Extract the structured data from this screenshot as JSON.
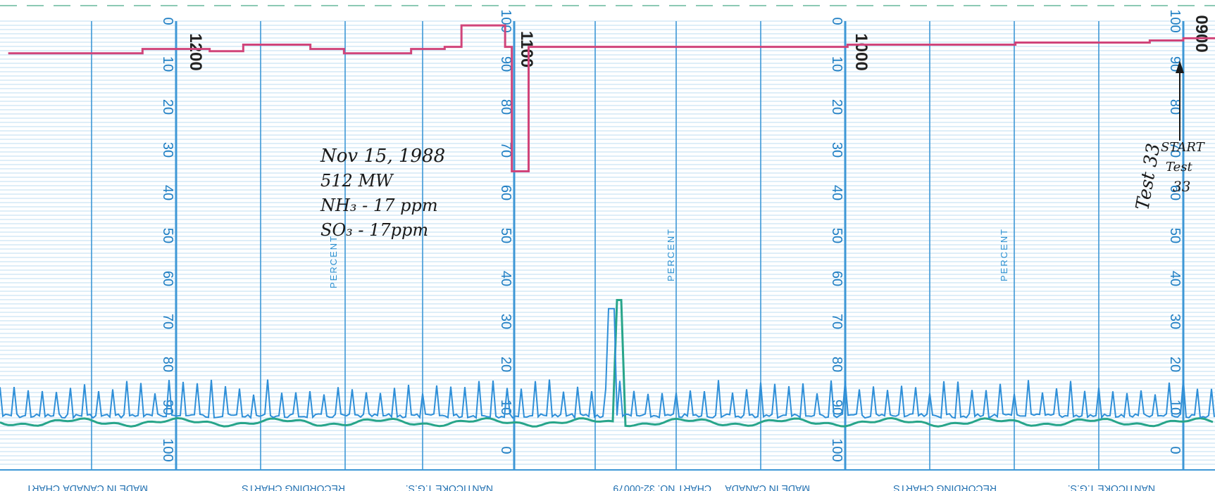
{
  "colors": {
    "grid_fine": "#a9d3ee",
    "grid_major": "#3d97d6",
    "trace_red": "#d0447a",
    "trace_blue": "#2f8fd8",
    "trace_teal": "#28a58a",
    "scale_text": "#1f7fc4"
  },
  "scales": {
    "percent_0_100": [
      "0",
      "10",
      "20",
      "30",
      "40",
      "50",
      "60",
      "70",
      "80",
      "90",
      "100"
    ],
    "percent_100_0": [
      "100",
      "90",
      "80",
      "70",
      "60",
      "50",
      "40",
      "30",
      "20",
      "10",
      "0"
    ],
    "percent_label": "PERCENT"
  },
  "time_labels": [
    "1200",
    "1100",
    "1000",
    "0900"
  ],
  "annotation": {
    "line1": "Nov 15, 1988",
    "line2": "512 MW",
    "line3": "NH₃ - 17 ppm",
    "line4": "SO₃ - 17ppm"
  },
  "start_note": {
    "line1": "START",
    "line2": "Test",
    "line3": "33",
    "side": "Test 33"
  },
  "footer": {
    "chart_left": "CHART",
    "made_in": "MADE IN CANADA",
    "recording": "RECORDING CHARTS",
    "nanticoke": "NANTICOKE T.G.S.",
    "chart_no": "CHART NO. 32-00079"
  },
  "chart_data": {
    "type": "line",
    "title": "",
    "xlabel": "",
    "ylabel": "PERCENT",
    "x_ticks_time": [
      "1200",
      "1100",
      "1000",
      "0900"
    ],
    "ylim": [
      0,
      100
    ],
    "series": [
      {
        "name": "",
        "color": "#d0447a",
        "time_from_right_hours": [
          3.5,
          3.1,
          2.9,
          2.8,
          2.6,
          2.5,
          2.3,
          2.2,
          2.15,
          2.05,
          2.02,
          2.0,
          1.95,
          1.5,
          1.0,
          0.5,
          0.1,
          0.0
        ],
        "percent": [
          92.5,
          93.5,
          93.0,
          94.5,
          93.5,
          92.5,
          93.5,
          94.0,
          99.0,
          99.0,
          94.0,
          65.0,
          94.0,
          94.0,
          94.5,
          95.0,
          95.5,
          96.0
        ]
      },
      {
        "name": "",
        "color": "#2f8fd8",
        "description_values": "periodic spikes",
        "baseline_percent": 8.0,
        "spike_peak_percent_range": [
          12,
          16
        ]
      },
      {
        "name": "",
        "color": "#28a58a",
        "baseline_percent": 6.5,
        "spike_peak_percent": 35
      }
    ]
  }
}
